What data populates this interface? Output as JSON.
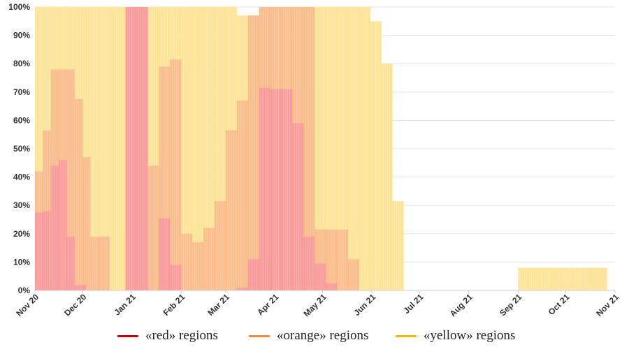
{
  "chart_data": {
    "type": "bar",
    "stacked": false,
    "ylim": [
      0,
      100
    ],
    "y_tick_format": "percent",
    "yticks": [
      0,
      10,
      20,
      30,
      40,
      50,
      60,
      70,
      80,
      90,
      100
    ],
    "y_tick_labels": [
      "0%",
      "10%",
      "20%",
      "30%",
      "40%",
      "50%",
      "60%",
      "70%",
      "80%",
      "90%",
      "100%"
    ],
    "grid": true,
    "legend_position": "bottom",
    "x_type": "time",
    "x_range": [
      "2020-11-01",
      "2021-11-01"
    ],
    "x_tick_labels": [
      "Nov 20",
      "Dec 20",
      "Jan 21",
      "Feb 21",
      "Mar 21",
      "Apr 21",
      "May 21",
      "Jun 21",
      "Jul 21",
      "Aug 21",
      "Sep 21",
      "Oct 21",
      "Nov 21"
    ],
    "series": [
      {
        "name": "«yellow» regions",
        "color": "#fde498",
        "points": [
          [
            "2020-11-01",
            100
          ],
          [
            "2020-11-06",
            100
          ],
          [
            "2020-11-11",
            100
          ],
          [
            "2020-11-16",
            100
          ],
          [
            "2020-11-21",
            100
          ],
          [
            "2020-11-26",
            100
          ],
          [
            "2020-12-01",
            100
          ],
          [
            "2020-12-06",
            100
          ],
          [
            "2020-12-11",
            100
          ],
          [
            "2020-12-16",
            100
          ],
          [
            "2020-12-21",
            100
          ],
          [
            "2020-12-28",
            100
          ],
          [
            "2021-01-07",
            100
          ],
          [
            "2021-01-11",
            100
          ],
          [
            "2021-01-18",
            100
          ],
          [
            "2021-01-25",
            100
          ],
          [
            "2021-02-01",
            100
          ],
          [
            "2021-02-08",
            100
          ],
          [
            "2021-02-15",
            100
          ],
          [
            "2021-02-22",
            100
          ],
          [
            "2021-03-01",
            100
          ],
          [
            "2021-03-08",
            97
          ],
          [
            "2021-03-15",
            97
          ],
          [
            "2021-03-22",
            97
          ],
          [
            "2021-03-29",
            100
          ],
          [
            "2021-04-05",
            100
          ],
          [
            "2021-04-12",
            100
          ],
          [
            "2021-04-19",
            100
          ],
          [
            "2021-04-26",
            100
          ],
          [
            "2021-05-03",
            100
          ],
          [
            "2021-05-10",
            100
          ],
          [
            "2021-05-17",
            100
          ],
          [
            "2021-05-24",
            100
          ],
          [
            "2021-05-31",
            95
          ],
          [
            "2021-06-07",
            80
          ],
          [
            "2021-06-14",
            31.5
          ],
          [
            "2021-09-01",
            8
          ],
          [
            "2021-09-08",
            8
          ],
          [
            "2021-09-15",
            8
          ],
          [
            "2021-09-22",
            8
          ],
          [
            "2021-09-29",
            8
          ],
          [
            "2021-10-06",
            8
          ],
          [
            "2021-10-13",
            8
          ],
          [
            "2021-10-20",
            8
          ]
        ]
      },
      {
        "name": "«orange» regions",
        "color": "#fbbd8c",
        "points": [
          [
            "2020-11-01",
            42
          ],
          [
            "2020-11-06",
            56.5
          ],
          [
            "2020-11-11",
            78
          ],
          [
            "2020-11-16",
            78
          ],
          [
            "2020-11-21",
            78
          ],
          [
            "2020-11-26",
            67.5
          ],
          [
            "2020-12-01",
            47
          ],
          [
            "2020-12-06",
            19
          ],
          [
            "2020-12-11",
            19
          ],
          [
            "2021-01-11",
            44
          ],
          [
            "2021-01-18",
            79
          ],
          [
            "2021-01-25",
            81.5
          ],
          [
            "2021-02-01",
            20
          ],
          [
            "2021-02-08",
            17
          ],
          [
            "2021-02-15",
            22
          ],
          [
            "2021-02-22",
            31.5
          ],
          [
            "2021-03-01",
            56.5
          ],
          [
            "2021-03-08",
            67
          ],
          [
            "2021-03-15",
            97
          ],
          [
            "2021-03-22",
            100
          ],
          [
            "2021-03-29",
            100
          ],
          [
            "2021-04-05",
            100
          ],
          [
            "2021-04-12",
            100
          ],
          [
            "2021-04-19",
            100
          ],
          [
            "2021-04-26",
            21.5
          ],
          [
            "2021-05-03",
            21.5
          ],
          [
            "2021-05-10",
            21.5
          ],
          [
            "2021-05-17",
            11
          ]
        ]
      },
      {
        "name": "«red» regions",
        "color": "#fb9b9b",
        "points": [
          [
            "2020-11-01",
            27.5
          ],
          [
            "2020-11-06",
            28
          ],
          [
            "2020-11-11",
            44
          ],
          [
            "2020-11-16",
            46
          ],
          [
            "2020-11-21",
            19
          ],
          [
            "2020-11-26",
            2
          ],
          [
            "2020-12-28",
            100
          ],
          [
            "2021-01-04",
            100
          ],
          [
            "2021-01-18",
            25.5
          ],
          [
            "2021-01-25",
            9
          ],
          [
            "2021-03-08",
            1
          ],
          [
            "2021-03-15",
            11
          ],
          [
            "2021-03-22",
            71.5
          ],
          [
            "2021-03-29",
            71
          ],
          [
            "2021-04-05",
            71
          ],
          [
            "2021-04-12",
            59
          ],
          [
            "2021-04-19",
            19
          ],
          [
            "2021-04-26",
            9.5
          ],
          [
            "2021-05-03",
            2.5
          ]
        ]
      }
    ],
    "legend_markers": [
      "#cc0000",
      "#f08a3c",
      "#f5b800"
    ]
  }
}
